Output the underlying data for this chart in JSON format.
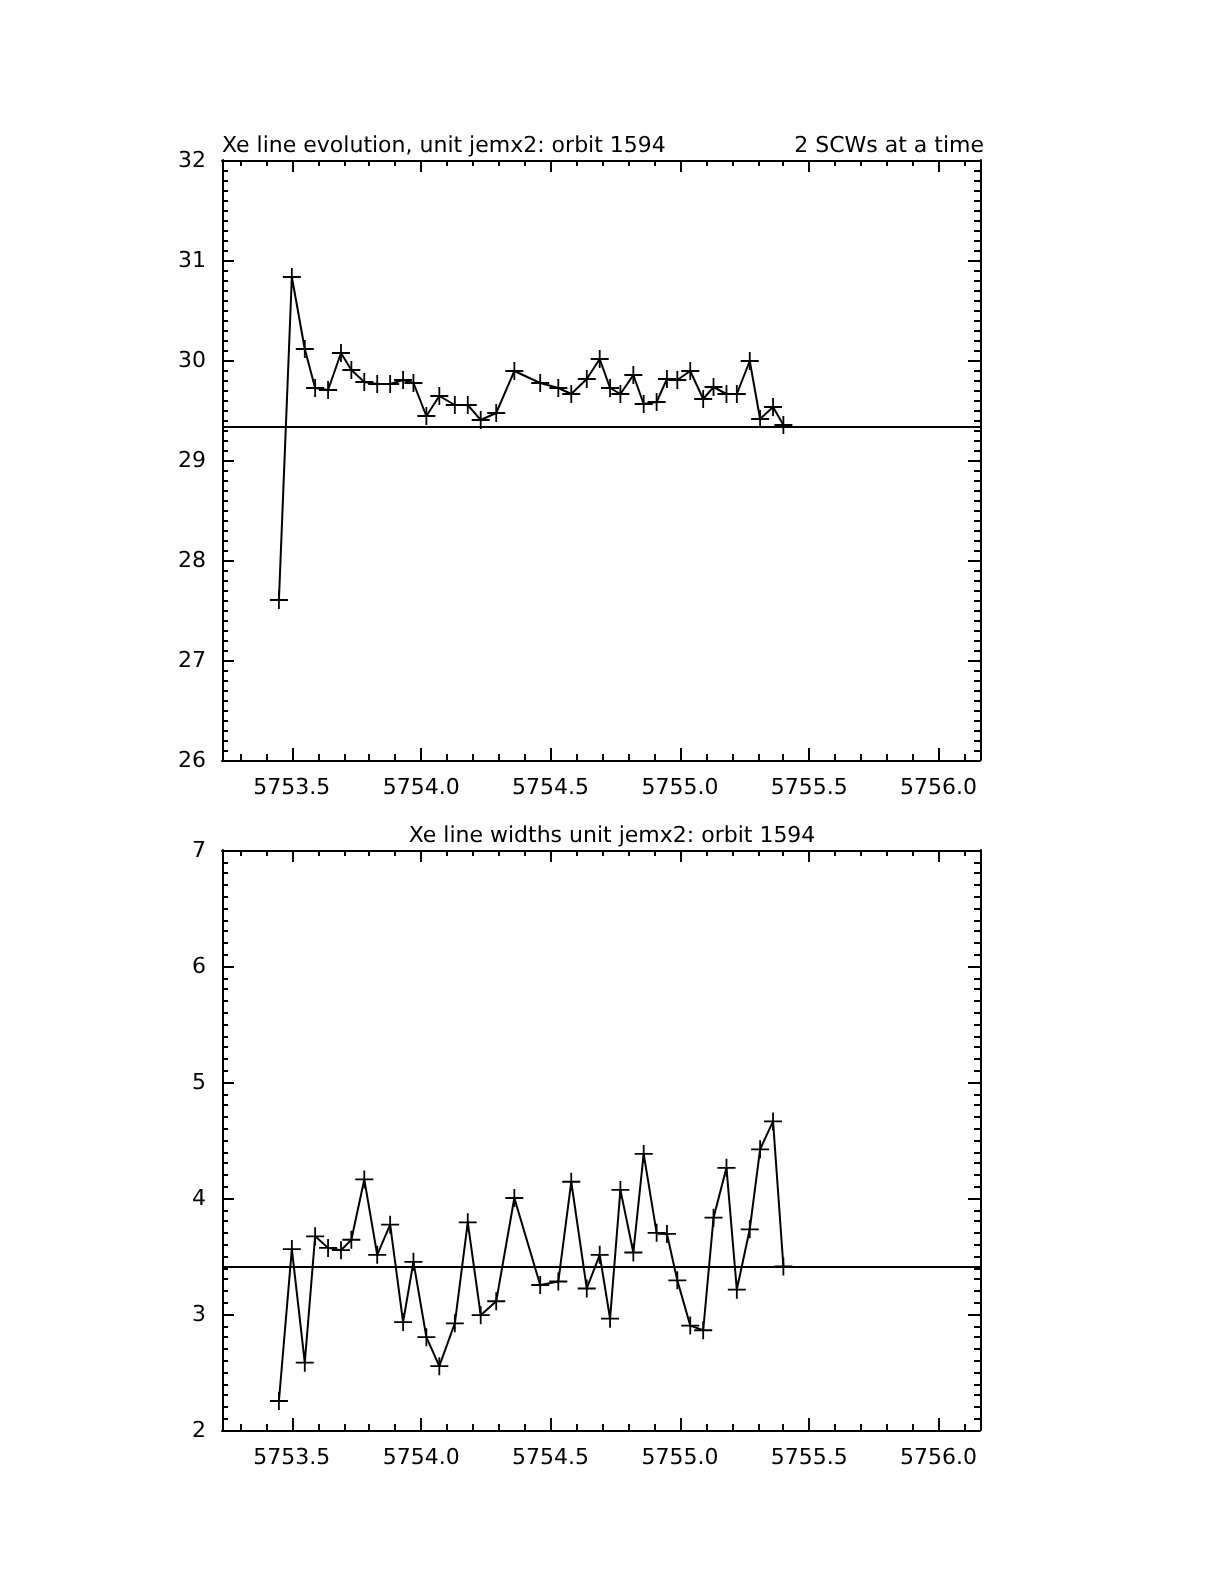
{
  "chart_data": [
    {
      "type": "line",
      "title": "Xe line evolution, unit jemx2: orbit 1594",
      "subtitle": "2 SCWs at a time",
      "x": [
        5753.45,
        5753.5,
        5753.55,
        5753.59,
        5753.64,
        5753.69,
        5753.73,
        5753.78,
        5753.83,
        5753.88,
        5753.93,
        5753.97,
        5754.02,
        5754.07,
        5754.13,
        5754.18,
        5754.23,
        5754.29,
        5754.36,
        5754.46,
        5754.53,
        5754.58,
        5754.64,
        5754.69,
        5754.73,
        5754.77,
        5754.82,
        5754.86,
        5754.91,
        5754.95,
        5754.99,
        5755.04,
        5755.09,
        5755.13,
        5755.18,
        5755.22,
        5755.27,
        5755.31,
        5755.36,
        5755.4
      ],
      "series": [
        {
          "color": "#000000",
          "values": [
            27.6,
            30.83,
            30.11,
            29.72,
            29.7,
            30.07,
            29.9,
            29.78,
            29.76,
            29.76,
            29.8,
            29.77,
            29.44,
            29.64,
            29.55,
            29.55,
            29.4,
            29.47,
            29.89,
            29.77,
            29.72,
            29.66,
            29.81,
            30.01,
            29.72,
            29.66,
            29.85,
            29.56,
            29.58,
            29.81,
            29.8,
            29.89,
            29.61,
            29.73,
            29.66,
            29.66,
            29.99,
            29.41,
            29.53,
            29.35
          ]
        }
      ],
      "xlim": [
        5753.23,
        5756.16
      ],
      "xticks": [
        {
          "value": 5753.5,
          "label": "5753.5"
        },
        {
          "value": 5754,
          "label": "5754.0"
        },
        {
          "value": 5754.5,
          "label": "5754.5"
        },
        {
          "value": 5755,
          "label": "5755.0"
        },
        {
          "value": 5755.5,
          "label": "5755.5"
        },
        {
          "value": 5756,
          "label": "5756.0"
        }
      ],
      "ylim": [
        26,
        32
      ],
      "yticks": [
        26,
        27,
        28,
        29,
        30,
        31,
        32
      ],
      "ref_lines": [
        {
          "axis": "y",
          "value": 29.34,
          "color": "#000000"
        }
      ],
      "marker": "cross",
      "line_style": "solid"
    },
    {
      "type": "line",
      "title": "Xe line widths unit jemx2: orbit 1594",
      "x": [
        5753.45,
        5753.5,
        5753.55,
        5753.59,
        5753.64,
        5753.69,
        5753.73,
        5753.78,
        5753.83,
        5753.88,
        5753.93,
        5753.97,
        5754.02,
        5754.07,
        5754.13,
        5754.18,
        5754.23,
        5754.29,
        5754.36,
        5754.46,
        5754.53,
        5754.58,
        5754.64,
        5754.69,
        5754.73,
        5754.77,
        5754.82,
        5754.86,
        5754.91,
        5754.95,
        5754.99,
        5755.04,
        5755.09,
        5755.13,
        5755.18,
        5755.22,
        5755.27,
        5755.31,
        5755.36,
        5755.4
      ],
      "series": [
        {
          "color": "#000000",
          "values": [
            2.25,
            3.56,
            2.58,
            3.67,
            3.57,
            3.55,
            3.64,
            4.16,
            3.51,
            3.77,
            2.93,
            3.45,
            2.8,
            2.55,
            2.92,
            3.79,
            2.99,
            3.11,
            4.0,
            3.25,
            3.28,
            4.14,
            3.22,
            3.51,
            2.96,
            4.07,
            3.53,
            4.38,
            3.7,
            3.69,
            3.29,
            2.9,
            2.86,
            3.83,
            4.26,
            3.21,
            3.73,
            4.42,
            4.66,
            3.41
          ]
        }
      ],
      "xlim": [
        5753.23,
        5756.16
      ],
      "xticks": [
        {
          "value": 5753.5,
          "label": "5753.5"
        },
        {
          "value": 5754,
          "label": "5754.0"
        },
        {
          "value": 5754.5,
          "label": "5754.5"
        },
        {
          "value": 5755,
          "label": "5755.0"
        },
        {
          "value": 5755.5,
          "label": "5755.5"
        },
        {
          "value": 5756,
          "label": "5756.0"
        }
      ],
      "ylim": [
        2,
        7
      ],
      "yticks": [
        2,
        3,
        4,
        5,
        6,
        7
      ],
      "ref_lines": [
        {
          "axis": "y",
          "value": 3.41,
          "color": "#000000"
        }
      ],
      "marker": "cross",
      "line_style": "solid"
    }
  ]
}
